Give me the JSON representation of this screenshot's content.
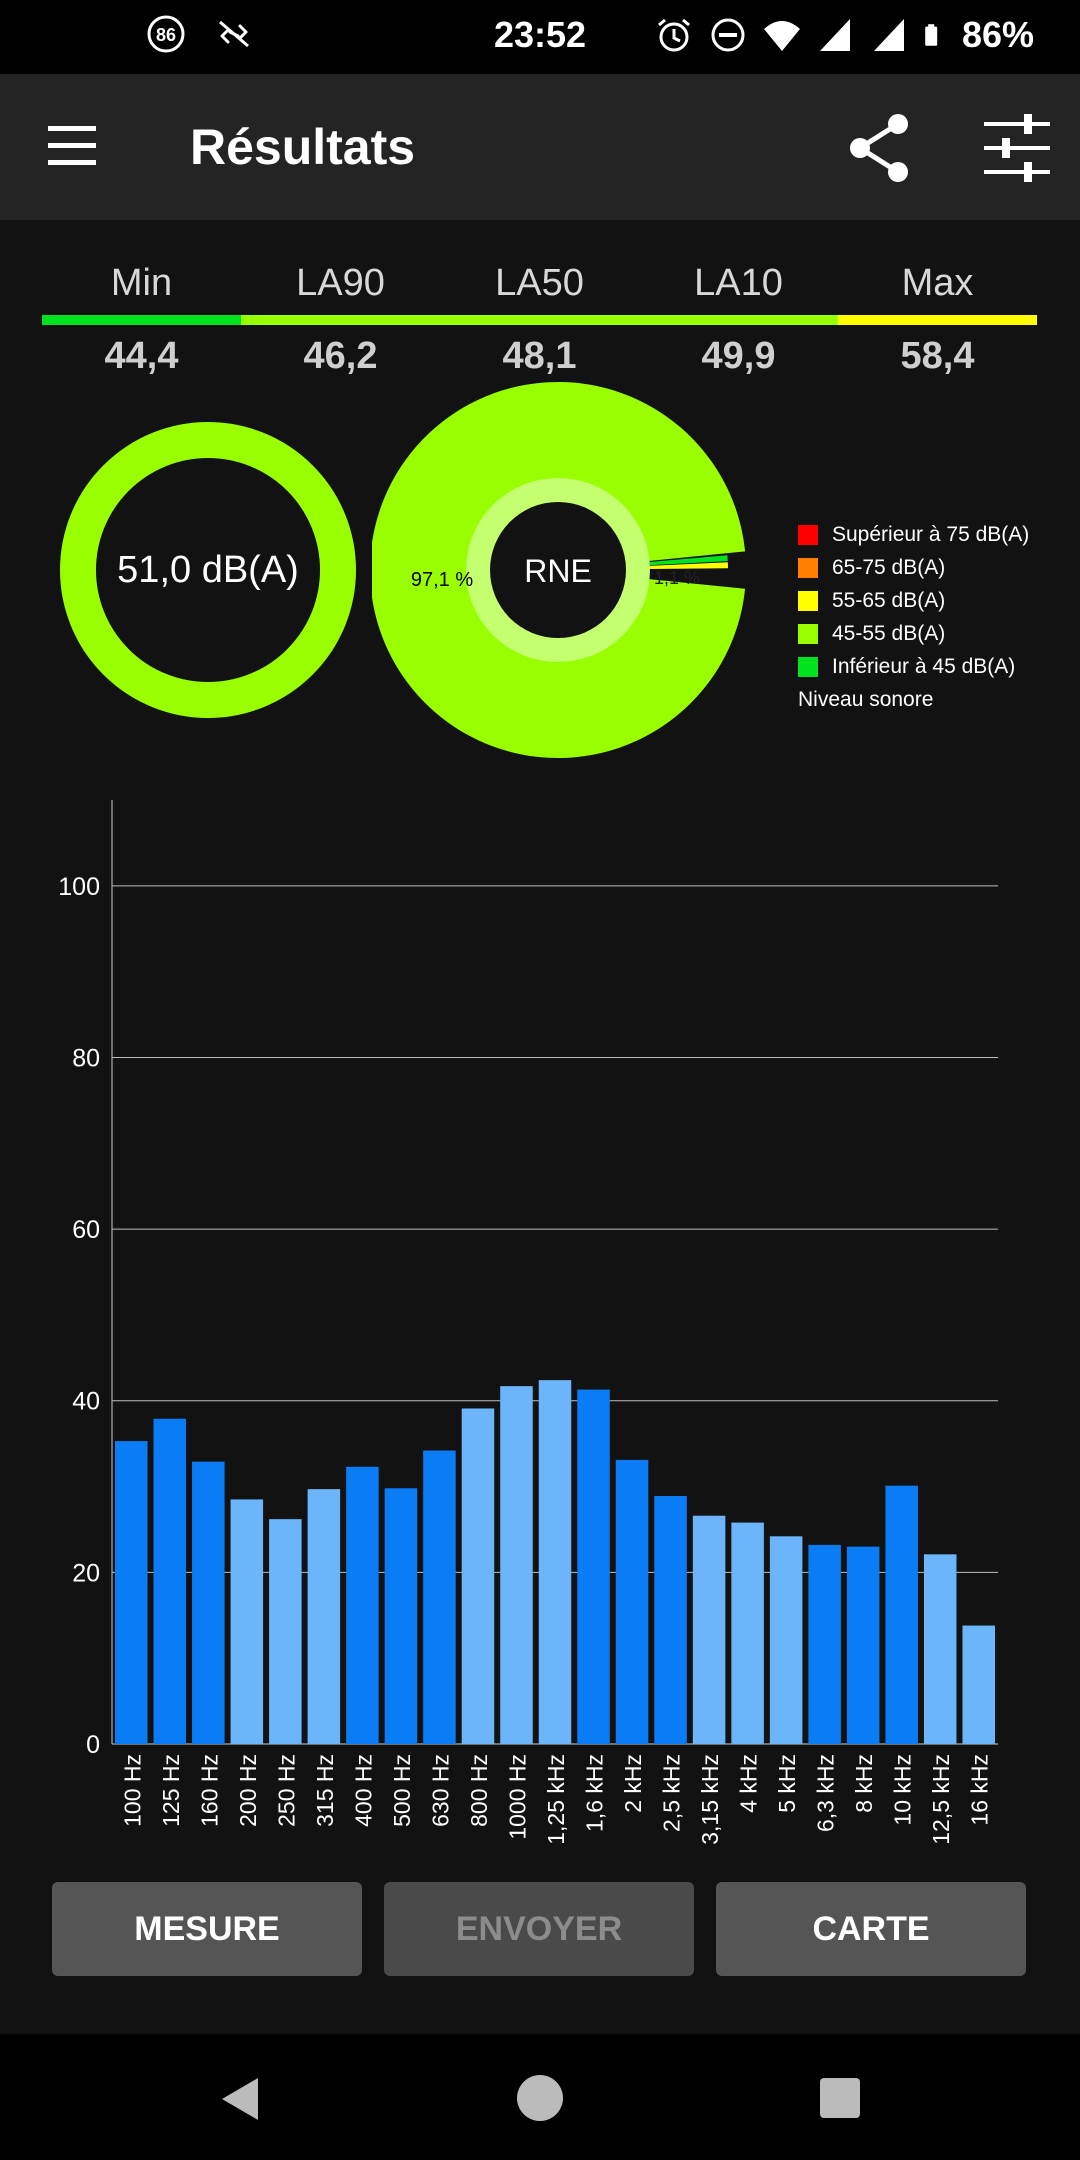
{
  "status_bar": {
    "time": "23:52",
    "badge": "86",
    "battery": "86%",
    "icons": [
      "notification-86-icon",
      "link-off-icon",
      "alarm-icon",
      "dnd-icon",
      "wifi-icon",
      "signal-icon",
      "signal-icon",
      "battery-icon"
    ]
  },
  "app_bar": {
    "title": "Résultats"
  },
  "stats": [
    {
      "label": "Min",
      "value": "44,4",
      "color": "#00e31e"
    },
    {
      "label": "LA90",
      "value": "46,2",
      "color": "#99ff00"
    },
    {
      "label": "LA50",
      "value": "48,1",
      "color": "#99ff00"
    },
    {
      "label": "LA10",
      "value": "49,9",
      "color": "#99ff00"
    },
    {
      "label": "Max",
      "value": "58,4",
      "color": "#ffff00"
    }
  ],
  "leq": {
    "text": "51,0 dB(A)",
    "color": "#99ff00"
  },
  "rne": {
    "center_label": "RNE",
    "main_pct_label": "97,1 %",
    "small_pct_label": "1,1 %",
    "slices": [
      {
        "name": "45-55 dB(A)",
        "pct": 97.1,
        "color": "#99ff00"
      },
      {
        "name": "Inférieur à 45 dB(A)",
        "pct": 1.1,
        "color": "#00e31e"
      },
      {
        "name": "55-65 dB(A)",
        "pct": 1.1,
        "color": "#ffff00"
      }
    ]
  },
  "legend": {
    "items": [
      {
        "label": "Supérieur à 75 dB(A)",
        "color": "#ff0000"
      },
      {
        "label": "65-75 dB(A)",
        "color": "#ff7f00"
      },
      {
        "label": "55-65 dB(A)",
        "color": "#ffff00"
      },
      {
        "label": "45-55 dB(A)",
        "color": "#99ff00"
      },
      {
        "label": "Inférieur à 45 dB(A)",
        "color": "#00e31e"
      }
    ],
    "caption": "Niveau sonore"
  },
  "chart_data": {
    "type": "bar",
    "categories": [
      "100 Hz",
      "125 Hz",
      "160 Hz",
      "200 Hz",
      "250 Hz",
      "315 Hz",
      "400 Hz",
      "500 Hz",
      "630 Hz",
      "800 Hz",
      "1000 Hz",
      "1,25 kHz",
      "1,6 kHz",
      "2 kHz",
      "2,5 kHz",
      "3,15 kHz",
      "4 kHz",
      "5 kHz",
      "6,3 kHz",
      "8 kHz",
      "10 kHz",
      "12,5 kHz",
      "16 kHz"
    ],
    "values": [
      35.3,
      37.9,
      32.9,
      28.5,
      26.2,
      29.7,
      32.3,
      29.8,
      34.2,
      39.1,
      41.7,
      42.4,
      41.3,
      33.1,
      28.9,
      26.6,
      25.8,
      24.2,
      23.2,
      23.0,
      30.1,
      22.1,
      13.8
    ],
    "colors": [
      "#0a7cf5",
      "#0a7cf5",
      "#0a7cf5",
      "#6cb5fb",
      "#6cb5fb",
      "#6cb5fb",
      "#0a7cf5",
      "#0a7cf5",
      "#0a7cf5",
      "#6cb5fb",
      "#6cb5fb",
      "#6cb5fb",
      "#0a7cf5",
      "#0a7cf5",
      "#0a7cf5",
      "#6cb5fb",
      "#6cb5fb",
      "#6cb5fb",
      "#0a7cf5",
      "#0a7cf5",
      "#0a7cf5",
      "#6cb5fb",
      "#6cb5fb"
    ],
    "yticks": [
      0,
      20,
      40,
      60,
      80,
      100
    ],
    "ylim": [
      0,
      110
    ],
    "grid": true
  },
  "buttons": {
    "measure": "MESURE",
    "send": "ENVOYER",
    "map": "CARTE"
  }
}
